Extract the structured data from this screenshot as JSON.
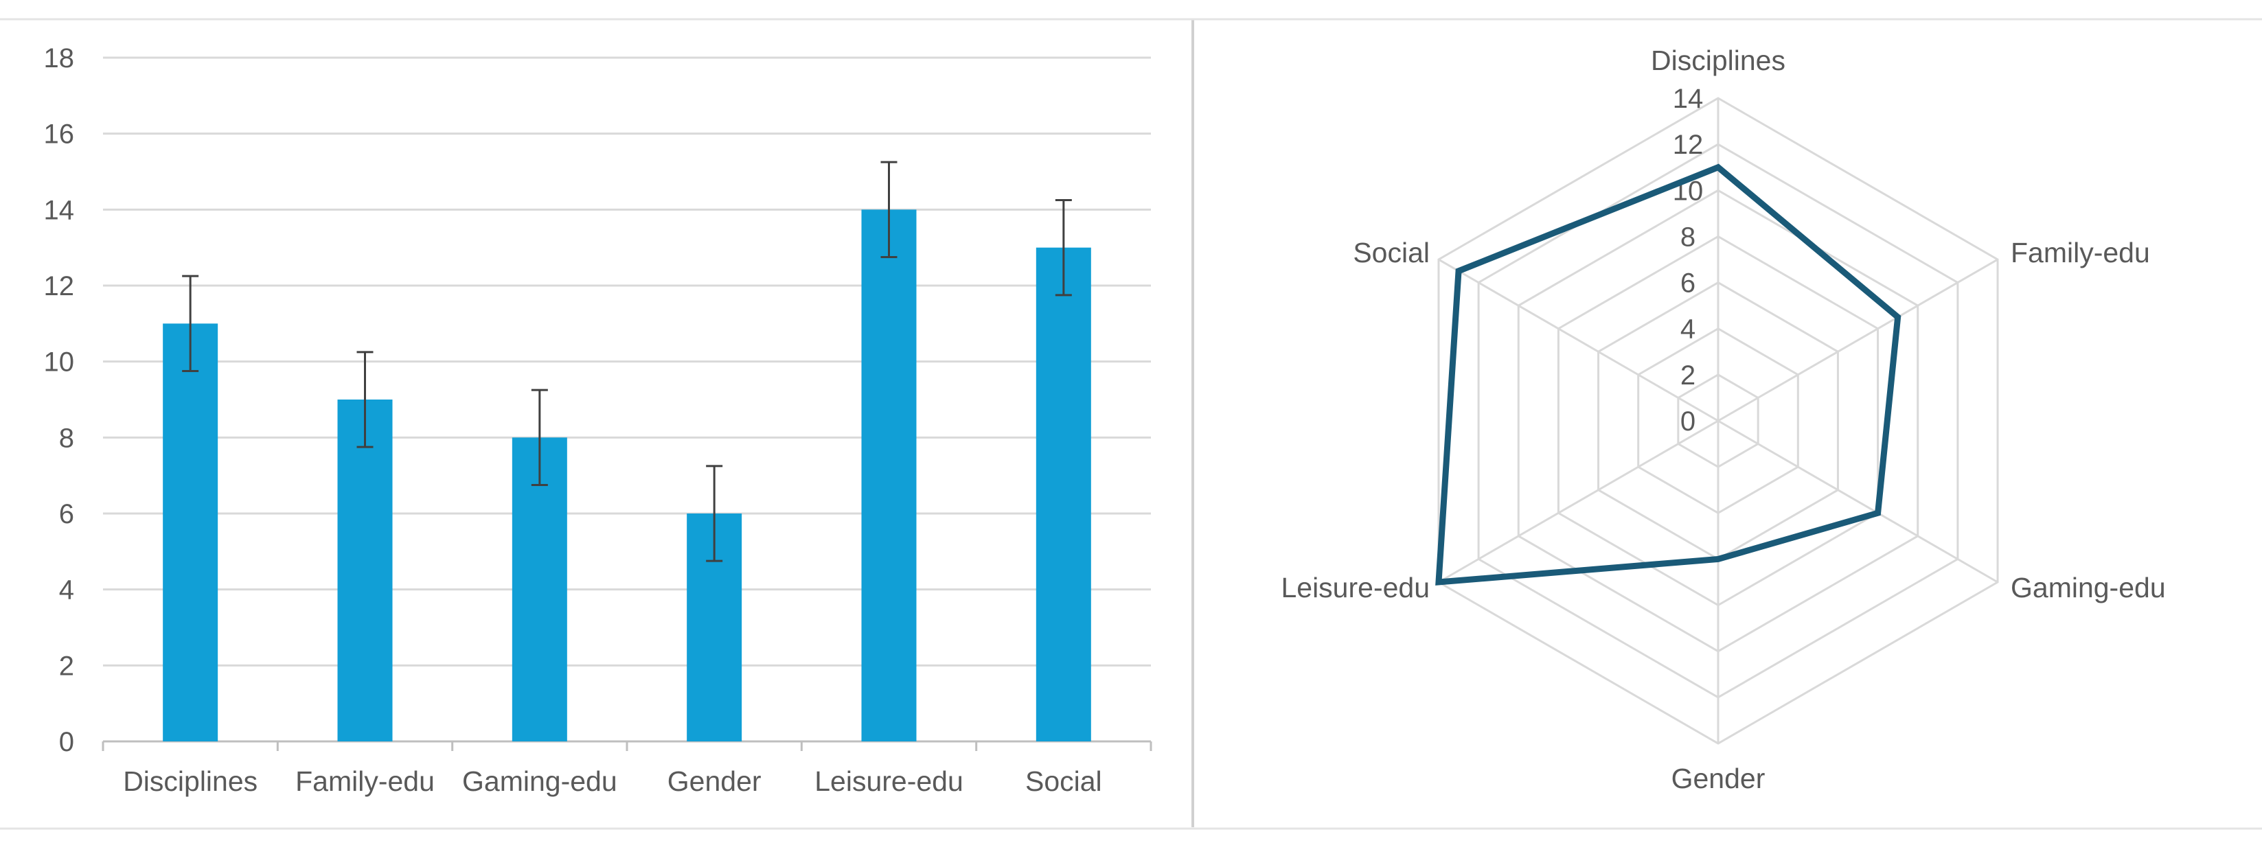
{
  "chart_data": [
    {
      "type": "bar",
      "categories": [
        "Disciplines",
        "Family-edu",
        "Gaming-edu",
        "Gender",
        "Leisure-edu",
        "Social"
      ],
      "values": [
        11,
        9,
        8,
        6,
        14,
        13
      ],
      "error": [
        1.25,
        1.25,
        1.25,
        1.25,
        1.25,
        1.25
      ],
      "ylim": [
        0,
        18
      ],
      "yticks": [
        0,
        2,
        4,
        6,
        8,
        10,
        12,
        14,
        16,
        18
      ],
      "grid": true,
      "color": "#119FD6",
      "error_color": "#404040"
    },
    {
      "type": "radar",
      "categories": [
        "Disciplines",
        "Family-edu",
        "Gaming-edu",
        "Gender",
        "Leisure-edu",
        "Social"
      ],
      "values": [
        11,
        9,
        8,
        6,
        14,
        13
      ],
      "rlim": [
        0,
        14
      ],
      "rticks": [
        0,
        2,
        4,
        6,
        8,
        10,
        12,
        14
      ],
      "grid": true,
      "color": "#1A5A78"
    }
  ]
}
